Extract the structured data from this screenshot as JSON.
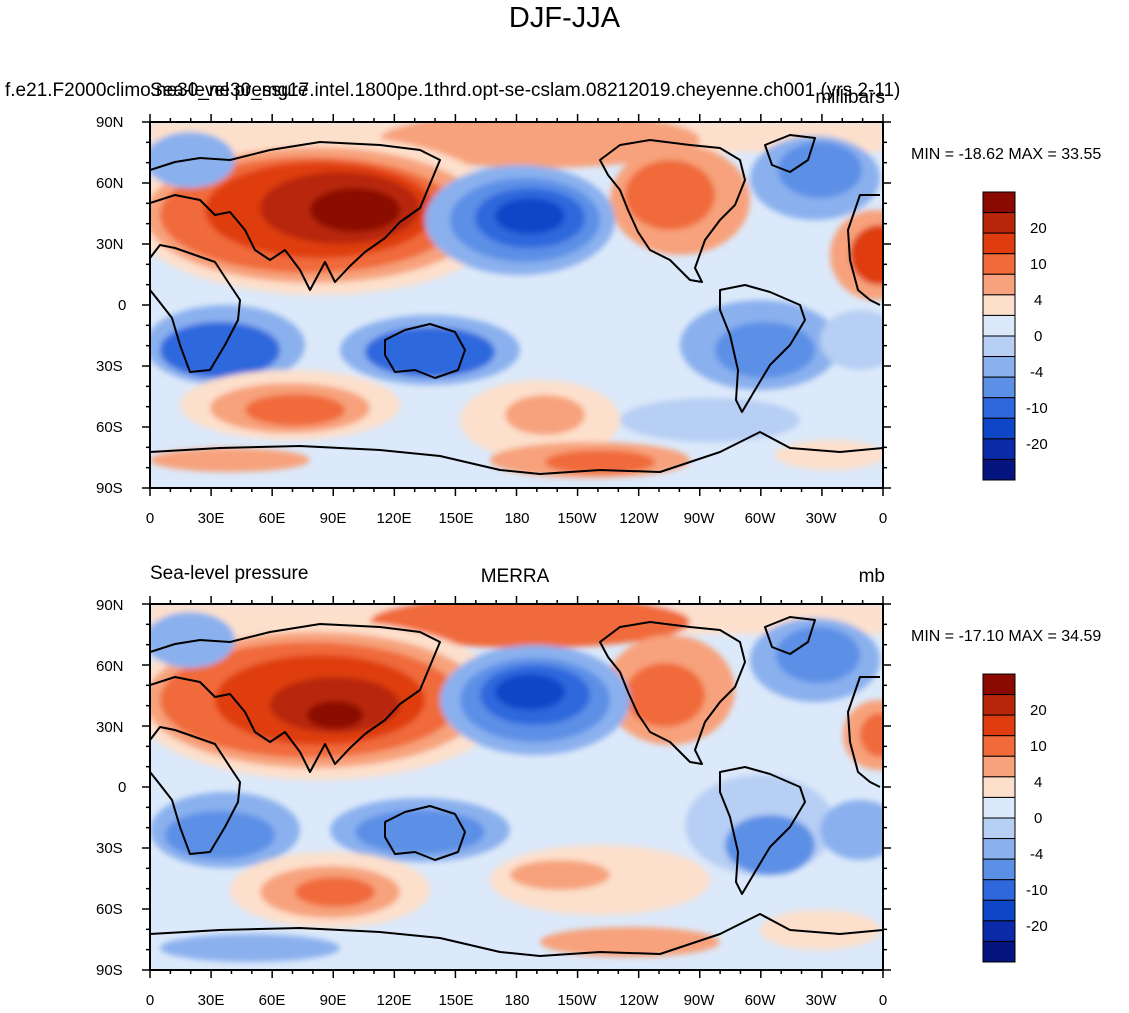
{
  "figure": {
    "title": "DJF-JJA"
  },
  "panels": [
    {
      "id": "model",
      "left_label": "f.e21.F2000climo.ne30_ne30_mg17.intel.1800pe.1thrd.opt-se-cslam.08212019.cheyenne.ch001 (yrs 2-11)",
      "overlay_label": "Sea-level pressure",
      "center_label": "",
      "right_label": "millibars",
      "stats": "MIN = -18.62 MAX =  33.55"
    },
    {
      "id": "obs",
      "left_label": "Sea-level pressure",
      "overlay_label": "",
      "center_label": "MERRA",
      "right_label": "mb",
      "stats": "MIN = -17.10 MAX =  34.59"
    }
  ],
  "axes": {
    "lat_ticks": [
      "90N",
      "60N",
      "30N",
      "0",
      "30S",
      "60S",
      "90S"
    ],
    "lon_ticks": [
      "0",
      "30E",
      "60E",
      "90E",
      "120E",
      "150E",
      "180",
      "150W",
      "120W",
      "90W",
      "60W",
      "30W",
      "0"
    ]
  },
  "colorbar": {
    "labels": [
      "20",
      "10",
      "4",
      "0",
      "-4",
      "-10",
      "-20"
    ],
    "colors": [
      "#8b0a00",
      "#b82509",
      "#df3d10",
      "#f06a3a",
      "#f7a27c",
      "#fde0cc",
      "#dce9fa",
      "#b7cff4",
      "#8ab0ee",
      "#5c8fe6",
      "#2f68dd",
      "#0f46c8",
      "#0a2aa8",
      "#061480"
    ]
  },
  "chart_data": {
    "type": "filled-contour-map",
    "title": "DJF-JJA",
    "variable": "Sea-level pressure",
    "units": "millibars",
    "levels": [
      -20,
      -15,
      -10,
      -6,
      -4,
      -2,
      0,
      2,
      4,
      6,
      10,
      15,
      20
    ],
    "xlim": [
      0,
      360
    ],
    "ylim": [
      -90,
      90
    ],
    "panels": [
      {
        "name": "model",
        "min": -18.62,
        "max": 33.55
      },
      {
        "name": "MERRA",
        "min": -17.1,
        "max": 34.59
      }
    ]
  }
}
